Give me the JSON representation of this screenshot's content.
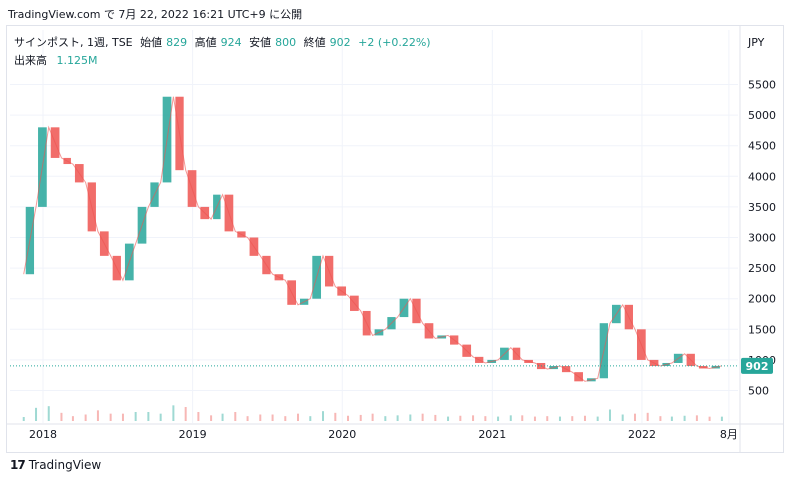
{
  "caption": "TradingView.com で 7月 22, 2022 16:21 UTC+9 に公開",
  "legend": {
    "symbol": "サインポスト, 1週, TSE",
    "open_label": "始値",
    "open": "829",
    "high_label": "高値",
    "high": "924",
    "low_label": "安値",
    "low": "800",
    "close_label": "終値",
    "close": "902",
    "change": "+2 (+0.22%)"
  },
  "volume_legend": {
    "label": "出来高",
    "value": "1.125M"
  },
  "currency": "JPY",
  "last_price_label": "902",
  "footer": {
    "brand": "TradingView",
    "mark": "17"
  },
  "colors": {
    "up": "#26a69a",
    "down": "#ef5350",
    "grid": "#f0f3fa",
    "text": "#131722"
  },
  "chart_data": {
    "type": "line",
    "title": "",
    "xlabel": "",
    "ylabel": "",
    "y_ticks": [
      500,
      1000,
      1500,
      2000,
      2500,
      3000,
      3500,
      4000,
      4500,
      5000,
      5500
    ],
    "x_ticks": [
      "2018",
      "2019",
      "2020",
      "2021",
      "2022",
      "8月"
    ],
    "ylim": [
      100,
      5900
    ],
    "x": [
      "2017-11",
      "2017-12",
      "2018-01",
      "2018-02",
      "2018-03",
      "2018-04",
      "2018-05",
      "2018-06",
      "2018-07",
      "2018-08",
      "2018-09",
      "2018-10",
      "2018-11",
      "2018-12",
      "2019-01",
      "2019-02",
      "2019-03",
      "2019-04",
      "2019-05",
      "2019-06",
      "2019-07",
      "2019-08",
      "2019-09",
      "2019-10",
      "2019-11",
      "2019-12",
      "2020-01",
      "2020-02",
      "2020-03",
      "2020-04",
      "2020-05",
      "2020-06",
      "2020-07",
      "2020-08",
      "2020-09",
      "2020-10",
      "2020-11",
      "2020-12",
      "2021-01",
      "2021-02",
      "2021-03",
      "2021-04",
      "2021-05",
      "2021-06",
      "2021-07",
      "2021-08",
      "2021-09",
      "2021-10",
      "2021-11",
      "2021-12",
      "2022-01",
      "2022-02",
      "2022-03",
      "2022-04",
      "2022-05",
      "2022-06",
      "2022-07"
    ],
    "series": [
      {
        "values": [
          2400,
          3500,
          4800,
          4300,
          4200,
          3900,
          3100,
          2700,
          2300,
          2900,
          3500,
          3900,
          5300,
          4100,
          3500,
          3300,
          3700,
          3100,
          3000,
          2700,
          2400,
          2300,
          1900,
          2000,
          2700,
          2200,
          2050,
          1800,
          1400,
          1500,
          1700,
          2000,
          1600,
          1350,
          1400,
          1250,
          1050,
          950,
          1000,
          1200,
          1000,
          950,
          850,
          900,
          800,
          650,
          700,
          1600,
          1900,
          1500,
          1000,
          900,
          950,
          1100,
          900,
          860,
          902
        ]
      }
    ],
    "volume_label": "出来高"
  }
}
